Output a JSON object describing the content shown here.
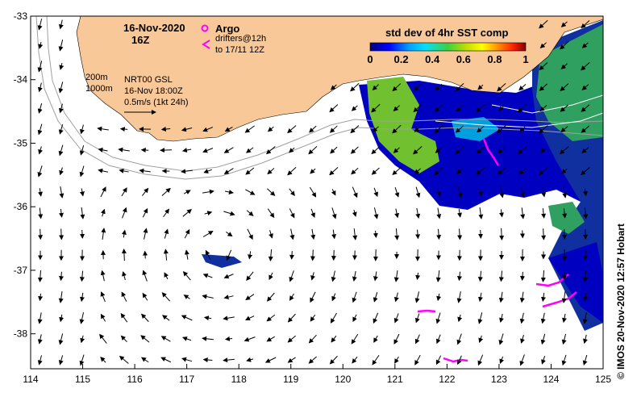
{
  "title": {
    "date": "16-Nov-2020",
    "hour": "16Z"
  },
  "legend": {
    "argo_label": "Argo",
    "drifters_label": "drifters@12h",
    "drifters_period": "to 17/11 12Z",
    "argo_color": "#ff00ff"
  },
  "colorbar": {
    "title": "std dev of 4hr SST comp",
    "ticks": [
      "0",
      "0.2",
      "0.4",
      "0.6",
      "0.8",
      "1"
    ]
  },
  "info": {
    "contour_200": "200m",
    "contour_1000": "1000m",
    "product": "NRT00 GSL",
    "valid_time": "16-Nov 18:00Z",
    "scale_text": "0.5m/s (1kt 24h)"
  },
  "credit": "© IMOS 20-Nov-2020 12:57 Hobart",
  "axes": {
    "x_ticks": [
      "114",
      "115",
      "116",
      "117",
      "118",
      "119",
      "120",
      "121",
      "122",
      "123",
      "124",
      "125"
    ],
    "y_ticks": [
      "-33",
      "-34",
      "-35",
      "-36",
      "-37",
      "-38"
    ],
    "lon_range": [
      114,
      125
    ],
    "lat_range": [
      -38.55,
      -33
    ]
  },
  "colors": {
    "land": "#f9c898",
    "ocean": "#ffffff",
    "sst_low": "#000080",
    "sst_mid": "#00c000",
    "sst_high": "#ffff00",
    "drifter": "#ff00ff",
    "contour": "#a0a0a0"
  }
}
